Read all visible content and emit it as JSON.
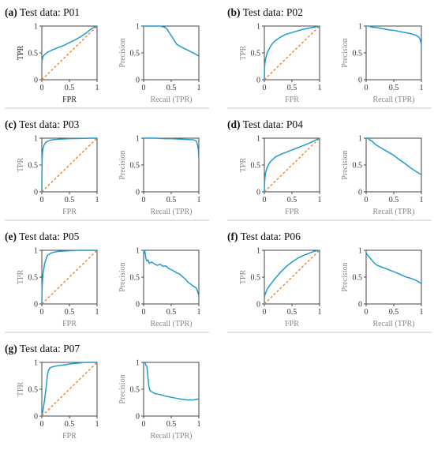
{
  "chart_data": [
    {
      "id": "P01",
      "label": "(a)",
      "title": "Test data: P01",
      "roc": {
        "type": "line",
        "xlabel": "FPR",
        "ylabel": "TPR",
        "xlim": [
          0,
          1
        ],
        "ylim": [
          0,
          1
        ],
        "xticks": [
          "0",
          "0.5",
          "1"
        ],
        "yticks": [
          "0",
          "0.5",
          "1"
        ],
        "diagonal": true,
        "x": [
          0,
          0.005,
          0.02,
          0.05,
          0.1,
          0.2,
          0.3,
          0.4,
          0.5,
          0.6,
          0.7,
          0.8,
          0.9,
          0.95,
          1
        ],
        "y": [
          0.3,
          0.36,
          0.43,
          0.47,
          0.51,
          0.56,
          0.6,
          0.64,
          0.69,
          0.74,
          0.8,
          0.87,
          0.95,
          0.98,
          1
        ]
      },
      "pr": {
        "type": "line",
        "xlabel": "Recall (TPR)",
        "ylabel": "Precision",
        "xlim": [
          0,
          1
        ],
        "ylim": [
          0,
          1
        ],
        "xticks": [
          "0",
          "0.5",
          "1"
        ],
        "yticks": [
          "0",
          "0.5",
          "1"
        ],
        "x": [
          0,
          0.05,
          0.1,
          0.2,
          0.3,
          0.38,
          0.42,
          0.45,
          0.48,
          0.52,
          0.55,
          0.6,
          0.7,
          0.8,
          0.9,
          1
        ],
        "y": [
          1,
          1,
          1,
          1,
          1,
          0.98,
          0.95,
          0.9,
          0.85,
          0.79,
          0.74,
          0.66,
          0.6,
          0.55,
          0.5,
          0.44
        ]
      }
    },
    {
      "id": "P02",
      "label": "(b)",
      "title": "Test data: P02",
      "roc": {
        "type": "line",
        "xlabel": "FPR",
        "ylabel": "TPR",
        "xlim": [
          0,
          1
        ],
        "ylim": [
          0,
          1
        ],
        "xticks": [
          "0",
          "0.5",
          "1"
        ],
        "yticks": [
          "0",
          "0.5",
          "1"
        ],
        "diagonal": true,
        "x": [
          0,
          0.005,
          0.02,
          0.05,
          0.1,
          0.15,
          0.2,
          0.3,
          0.4,
          0.5,
          0.6,
          0.7,
          0.8,
          0.9,
          1
        ],
        "y": [
          0,
          0.25,
          0.38,
          0.5,
          0.6,
          0.68,
          0.73,
          0.8,
          0.85,
          0.88,
          0.91,
          0.94,
          0.96,
          0.98,
          1
        ]
      },
      "pr": {
        "type": "line",
        "xlabel": "Recall (TPR)",
        "ylabel": "Precision",
        "xlim": [
          0,
          1
        ],
        "ylim": [
          0,
          1
        ],
        "xticks": [
          "0",
          "0.5",
          "1"
        ],
        "yticks": [
          "0",
          "0.5",
          "1"
        ],
        "x": [
          0,
          0.05,
          0.1,
          0.2,
          0.3,
          0.4,
          0.5,
          0.6,
          0.7,
          0.8,
          0.9,
          0.95,
          0.98,
          1
        ],
        "y": [
          1,
          1,
          0.98,
          0.97,
          0.95,
          0.93,
          0.92,
          0.9,
          0.88,
          0.86,
          0.83,
          0.8,
          0.75,
          0.65
        ]
      }
    },
    {
      "id": "P03",
      "label": "(c)",
      "title": "Test data: P03",
      "roc": {
        "type": "line",
        "xlabel": "FPR",
        "ylabel": "TPR",
        "xlim": [
          0,
          1
        ],
        "ylim": [
          0,
          1
        ],
        "xticks": [
          "0",
          "0.5",
          "1"
        ],
        "yticks": [
          "0",
          "0.5",
          "1"
        ],
        "diagonal": true,
        "x": [
          0,
          0.003,
          0.01,
          0.02,
          0.04,
          0.07,
          0.1,
          0.15,
          0.2,
          0.3,
          0.5,
          0.7,
          0.9,
          1
        ],
        "y": [
          0,
          0.5,
          0.7,
          0.8,
          0.87,
          0.92,
          0.94,
          0.96,
          0.97,
          0.98,
          0.99,
          0.995,
          1,
          1
        ]
      },
      "pr": {
        "type": "line",
        "xlabel": "Recall (TPR)",
        "ylabel": "Precision",
        "xlim": [
          0,
          1
        ],
        "ylim": [
          0,
          1
        ],
        "xticks": [
          "0",
          "0.5",
          "1"
        ],
        "yticks": [
          "0",
          "0.5",
          "1"
        ],
        "x": [
          0,
          0.1,
          0.2,
          0.3,
          0.4,
          0.5,
          0.6,
          0.7,
          0.8,
          0.9,
          0.95,
          0.97,
          0.99,
          1
        ],
        "y": [
          1,
          1,
          1,
          0.995,
          0.99,
          0.99,
          0.985,
          0.98,
          0.975,
          0.97,
          0.95,
          0.9,
          0.8,
          0.62
        ]
      }
    },
    {
      "id": "P04",
      "label": "(d)",
      "title": "Test data: P04",
      "roc": {
        "type": "line",
        "xlabel": "FPR",
        "ylabel": "TPR",
        "xlim": [
          0,
          1
        ],
        "ylim": [
          0,
          1
        ],
        "xticks": [
          "0",
          "0.5",
          "1"
        ],
        "yticks": [
          "0",
          "0.5",
          "1"
        ],
        "diagonal": true,
        "x": [
          0,
          0.005,
          0.02,
          0.05,
          0.1,
          0.2,
          0.3,
          0.4,
          0.5,
          0.6,
          0.7,
          0.8,
          0.9,
          1
        ],
        "y": [
          0,
          0.2,
          0.35,
          0.45,
          0.55,
          0.65,
          0.7,
          0.74,
          0.78,
          0.82,
          0.86,
          0.9,
          0.95,
          1
        ]
      },
      "pr": {
        "type": "line",
        "xlabel": "Recall (TPR)",
        "ylabel": "Precision",
        "xlim": [
          0,
          1
        ],
        "ylim": [
          0,
          1
        ],
        "xticks": [
          "0",
          "0.5",
          "1"
        ],
        "yticks": [
          "0",
          "0.5",
          "1"
        ],
        "x": [
          0,
          0.03,
          0.06,
          0.1,
          0.15,
          0.2,
          0.3,
          0.4,
          0.5,
          0.6,
          0.7,
          0.8,
          0.9,
          1
        ],
        "y": [
          1,
          1,
          0.97,
          0.95,
          0.9,
          0.86,
          0.8,
          0.74,
          0.68,
          0.6,
          0.53,
          0.45,
          0.38,
          0.32
        ]
      }
    },
    {
      "id": "P05",
      "label": "(e)",
      "title": "Test data: P05",
      "roc": {
        "type": "line",
        "xlabel": "FPR",
        "ylabel": "TPR",
        "xlim": [
          0,
          1
        ],
        "ylim": [
          0,
          1
        ],
        "xticks": [
          "0",
          "0.5",
          "1"
        ],
        "yticks": [
          "0",
          "0.5",
          "1"
        ],
        "diagonal": true,
        "x": [
          0,
          0.005,
          0.02,
          0.05,
          0.08,
          0.1,
          0.15,
          0.2,
          0.3,
          0.5,
          0.7,
          0.9,
          1
        ],
        "y": [
          0,
          0.3,
          0.55,
          0.75,
          0.85,
          0.9,
          0.94,
          0.96,
          0.98,
          0.99,
          1,
          1,
          1
        ]
      },
      "pr": {
        "type": "line",
        "xlabel": "Recall (TPR)",
        "ylabel": "Precision",
        "xlim": [
          0,
          1
        ],
        "ylim": [
          0,
          1
        ],
        "xticks": [
          "0",
          "0.5",
          "1"
        ],
        "yticks": [
          "0",
          "0.5",
          "1"
        ],
        "x": [
          0,
          0.01,
          0.02,
          0.04,
          0.06,
          0.08,
          0.1,
          0.15,
          0.2,
          0.25,
          0.3,
          0.35,
          0.4,
          0.45,
          0.5,
          0.55,
          0.6,
          0.65,
          0.7,
          0.75,
          0.8,
          0.85,
          0.9,
          0.95,
          0.97,
          1
        ],
        "y": [
          1,
          0.95,
          1,
          0.85,
          0.8,
          0.82,
          0.76,
          0.78,
          0.74,
          0.72,
          0.74,
          0.7,
          0.71,
          0.66,
          0.64,
          0.61,
          0.58,
          0.56,
          0.51,
          0.47,
          0.41,
          0.37,
          0.33,
          0.3,
          0.26,
          0.15
        ]
      }
    },
    {
      "id": "P06",
      "label": "(f)",
      "title": "Test data: P06",
      "roc": {
        "type": "line",
        "xlabel": "FPR",
        "ylabel": "TPR",
        "xlim": [
          0,
          1
        ],
        "ylim": [
          0,
          1
        ],
        "xticks": [
          "0",
          "0.5",
          "1"
        ],
        "yticks": [
          "0",
          "0.5",
          "1"
        ],
        "diagonal": true,
        "x": [
          0,
          0.01,
          0.03,
          0.05,
          0.1,
          0.2,
          0.3,
          0.4,
          0.5,
          0.6,
          0.7,
          0.8,
          0.9,
          1
        ],
        "y": [
          0.1,
          0.17,
          0.22,
          0.27,
          0.35,
          0.48,
          0.6,
          0.7,
          0.78,
          0.85,
          0.9,
          0.94,
          0.98,
          1
        ]
      },
      "pr": {
        "type": "line",
        "xlabel": "Recall (TPR)",
        "ylabel": "Precision",
        "xlim": [
          0,
          1
        ],
        "ylim": [
          0,
          1
        ],
        "xticks": [
          "0",
          "0.5",
          "1"
        ],
        "yticks": [
          "0",
          "0.5",
          "1"
        ],
        "x": [
          0,
          0.02,
          0.05,
          0.1,
          0.15,
          0.2,
          0.3,
          0.4,
          0.5,
          0.6,
          0.7,
          0.8,
          0.9,
          1
        ],
        "y": [
          0.95,
          0.92,
          0.88,
          0.82,
          0.76,
          0.72,
          0.68,
          0.64,
          0.6,
          0.56,
          0.51,
          0.48,
          0.44,
          0.38
        ]
      }
    },
    {
      "id": "P07",
      "label": "(g)",
      "title": "Test data: P07",
      "roc": {
        "type": "line",
        "xlabel": "FPR",
        "ylabel": "TPR",
        "xlim": [
          0,
          1
        ],
        "ylim": [
          0,
          1
        ],
        "xticks": [
          "0",
          "0.5",
          "1"
        ],
        "yticks": [
          "0",
          "0.5",
          "1"
        ],
        "diagonal": true,
        "x": [
          0,
          0.02,
          0.05,
          0.08,
          0.1,
          0.12,
          0.15,
          0.2,
          0.3,
          0.4,
          0.5,
          0.6,
          0.7,
          0.8,
          0.9,
          1
        ],
        "y": [
          0,
          0.1,
          0.3,
          0.55,
          0.75,
          0.85,
          0.9,
          0.92,
          0.94,
          0.95,
          0.97,
          0.98,
          0.99,
          1,
          1,
          1
        ]
      },
      "pr": {
        "type": "line",
        "xlabel": "Recall (TPR)",
        "ylabel": "Precision",
        "xlim": [
          0,
          1
        ],
        "ylim": [
          0,
          1
        ],
        "xticks": [
          "0",
          "0.5",
          "1"
        ],
        "yticks": [
          "0",
          "0.5",
          "1"
        ],
        "x": [
          0,
          0.02,
          0.04,
          0.06,
          0.08,
          0.1,
          0.12,
          0.15,
          0.2,
          0.3,
          0.4,
          0.5,
          0.6,
          0.7,
          0.8,
          0.9,
          1
        ],
        "y": [
          1,
          1,
          0.95,
          0.92,
          0.7,
          0.52,
          0.47,
          0.45,
          0.42,
          0.4,
          0.37,
          0.35,
          0.33,
          0.31,
          0.3,
          0.3,
          0.32
        ]
      }
    }
  ]
}
